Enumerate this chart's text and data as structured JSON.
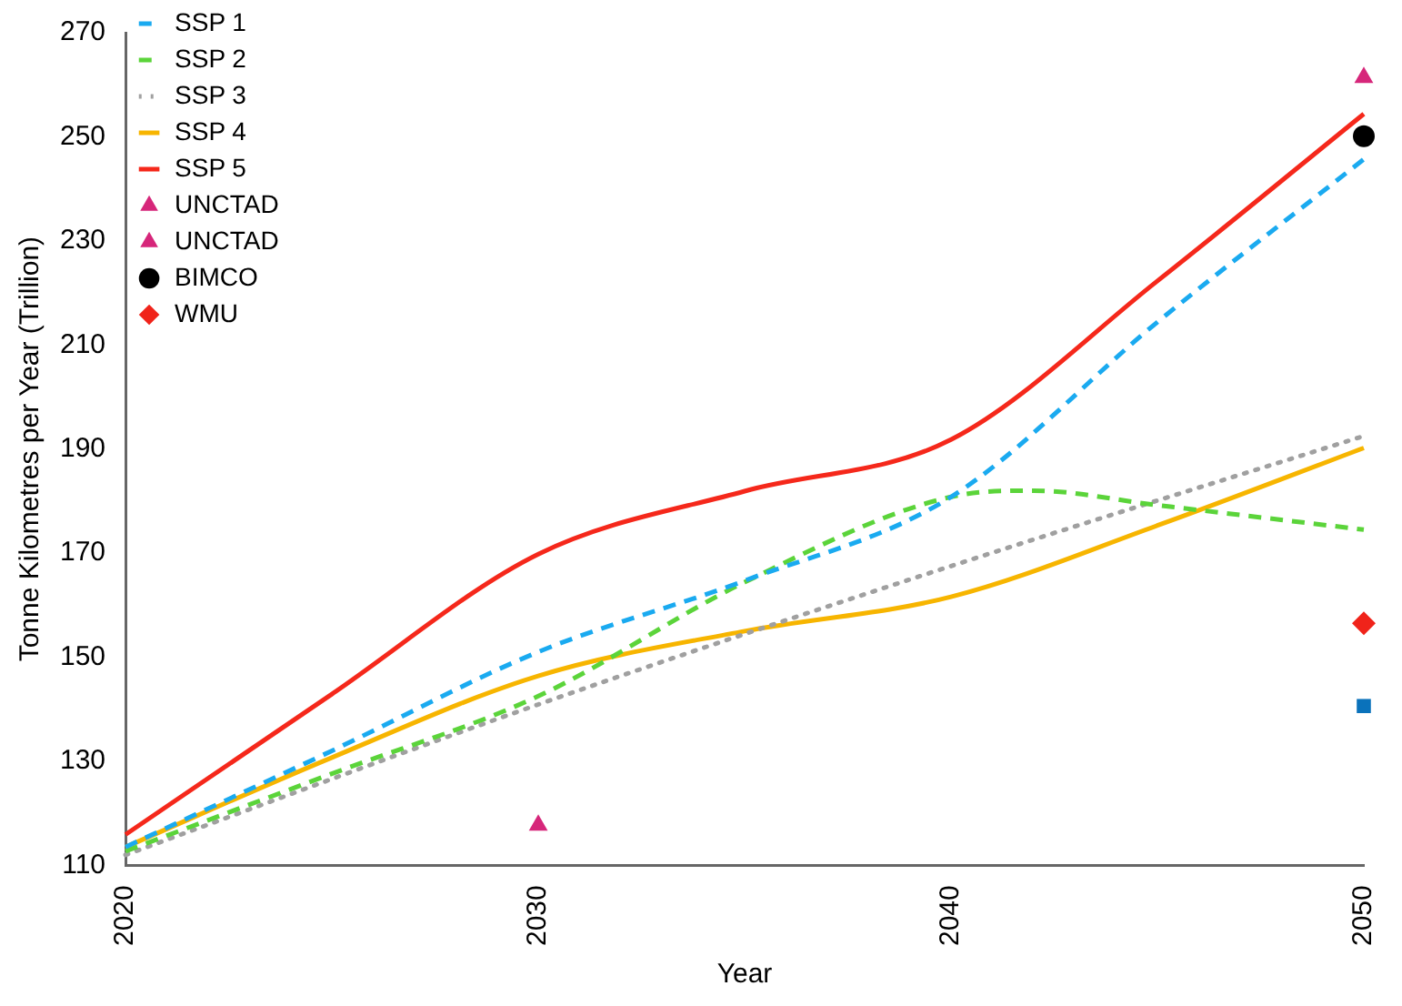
{
  "chart_data": {
    "type": "line",
    "xlabel": "Year",
    "ylabel": "Tonne Kilometres per Year (Trillion)",
    "xlim": [
      2020,
      2050
    ],
    "xticks": [
      2020,
      2030,
      2040,
      2050
    ],
    "ylim": [
      110,
      270
    ],
    "yticks": [
      110,
      130,
      150,
      170,
      190,
      210,
      230,
      250,
      270
    ],
    "grid": false,
    "legend": "top left",
    "series": [
      {
        "name": "SSP 1",
        "line_style": "dashed",
        "color": "#1aaaf0",
        "x": [
          2020,
          2025,
          2030,
          2035,
          2040,
          2045,
          2050
        ],
        "values": [
          113.5,
          132,
          151,
          164.7,
          180.8,
          214.4,
          245.7
        ]
      },
      {
        "name": "SSP 2",
        "line_style": "dashed",
        "color": "#5bd43a",
        "x": [
          2020,
          2025,
          2030,
          2035,
          2040,
          2042,
          2045,
          2050
        ],
        "values": [
          112.7,
          127.6,
          142.5,
          164.4,
          180.8,
          182,
          179.2,
          174.5
        ]
      },
      {
        "name": "SSP 3",
        "line_style": "dotted",
        "color": "#a0a0a0",
        "x": [
          2020,
          2030,
          2040,
          2050
        ],
        "values": [
          112,
          140.9,
          167.5,
          192.5
        ]
      },
      {
        "name": "SSP 4",
        "line_style": "solid",
        "color": "#f7b500",
        "x": [
          2020,
          2025,
          2030,
          2035,
          2040,
          2045,
          2050
        ],
        "values": [
          113.5,
          130.7,
          146.4,
          155,
          161.6,
          175.3,
          190.2
        ]
      },
      {
        "name": "SSP 5",
        "line_style": "solid",
        "color": "#f5281b",
        "x": [
          2020,
          2025,
          2030,
          2035,
          2040,
          2045,
          2050
        ],
        "values": [
          115.9,
          142.9,
          169.8,
          181.9,
          191.8,
          222.3,
          254.4
        ]
      },
      {
        "name": "UNCTAD",
        "type": "scatter",
        "marker": "triangle",
        "color": "#d6267a",
        "x": [
          2030
        ],
        "values": [
          117.7
        ]
      },
      {
        "name": "UNCTAD",
        "type": "scatter",
        "marker": "triangle",
        "color": "#d6267a",
        "x": [
          2050
        ],
        "values": [
          261.4
        ]
      },
      {
        "name": "BIMCO",
        "type": "scatter",
        "marker": "circle",
        "color": "#000000",
        "x": [
          2050
        ],
        "values": [
          250.1
        ]
      },
      {
        "type": "scatter",
        "marker": "square",
        "color": "#0a72bb",
        "x": [
          2050
        ],
        "values": [
          140.6
        ]
      },
      {
        "name": "WMU",
        "type": "scatter",
        "marker": "diamond",
        "color": "#f0231a",
        "x": [
          2050
        ],
        "values": [
          156.5
        ]
      }
    ]
  }
}
